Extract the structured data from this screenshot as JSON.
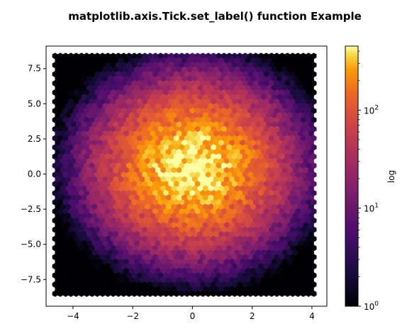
{
  "chart_data": {
    "type": "hexbin",
    "title": "matplotlib.axis.Tick.set_label() function Example",
    "xlabel": "",
    "ylabel": "",
    "x_ticks": [
      -4,
      -2,
      0,
      2,
      4
    ],
    "x_tick_labels": [
      "−4",
      "−2",
      "0",
      "2",
      "4"
    ],
    "y_ticks": [
      -7.5,
      -5.0,
      -2.5,
      0.0,
      2.5,
      5.0,
      7.5
    ],
    "y_tick_labels": [
      "−7.5",
      "−5.0",
      "−2.5",
      "0.0",
      "2.5",
      "5.0",
      "7.5"
    ],
    "xlim": [
      -4.9,
      4.5
    ],
    "ylim": [
      -9.4,
      9.1
    ],
    "data_extent": {
      "x": [
        -4.6,
        4.1
      ],
      "y": [
        -8.6,
        8.4
      ]
    },
    "distribution": {
      "kind": "2d-gaussian",
      "center": [
        0.0,
        0.5
      ],
      "sigma_x": 1.4,
      "sigma_y": 2.6,
      "peak_count": 450
    },
    "colormap": "inferno",
    "colorscale": "log",
    "colorbar": {
      "label": "log",
      "range": [
        1,
        450
      ],
      "ticks": [
        {
          "value": 1,
          "base": "10",
          "exp": "0"
        },
        {
          "value": 10,
          "base": "10",
          "exp": "1"
        },
        {
          "value": 100,
          "base": "10",
          "exp": "2"
        }
      ]
    },
    "grid": false,
    "legend": false
  }
}
